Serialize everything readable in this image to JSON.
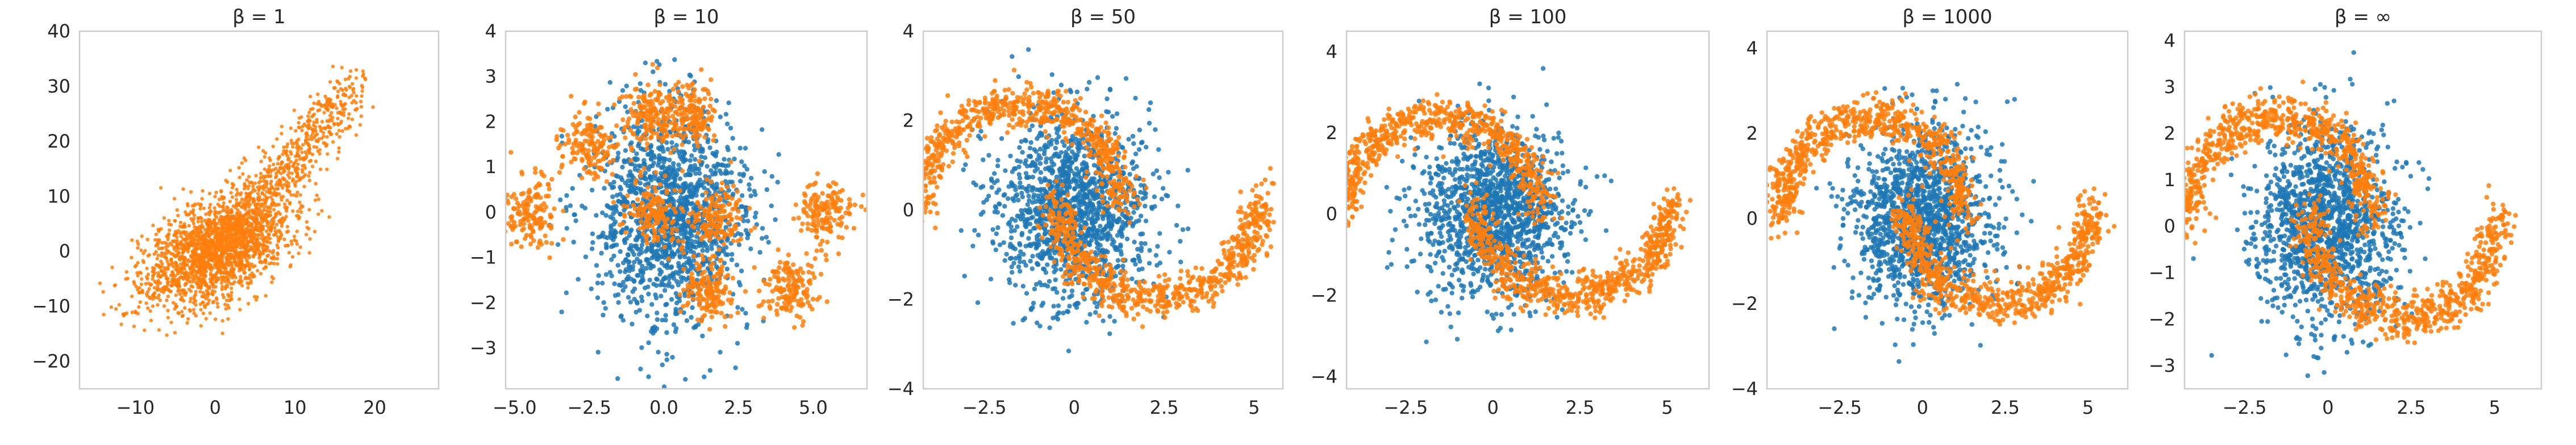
{
  "figure": {
    "colors": {
      "blue": "#1f77b4",
      "orange": "#ff7f0e",
      "spine": "#cccccc",
      "text": "#262626"
    }
  },
  "chart_data": [
    {
      "type": "scatter",
      "title": "β = 1",
      "xlim": [
        -17,
        28
      ],
      "ylim": [
        -25,
        40
      ],
      "xticks": [
        -10,
        0,
        10,
        20
      ],
      "yticks": [
        -20,
        -10,
        0,
        10,
        20,
        30,
        40
      ],
      "grid": false,
      "series": [
        {
          "color": "#ff7f0e",
          "kind": "linear_blob",
          "description_points": [
            [
              -14,
              -15
            ],
            [
              -10,
              -8
            ],
            [
              -5,
              -4
            ],
            [
              0,
              0
            ],
            [
              5,
              4
            ],
            [
              10,
              13
            ],
            [
              15,
              28
            ],
            [
              18,
              36
            ],
            [
              22,
              35
            ],
            [
              26,
              25
            ]
          ]
        }
      ]
    },
    {
      "type": "scatter",
      "title": "β = 10",
      "xlim": [
        -5.3,
        6.8
      ],
      "ylim": [
        -3.9,
        4.0
      ],
      "xticks": [
        -5.0,
        -2.5,
        0.0,
        2.5,
        5.0
      ],
      "yticks": [
        -3,
        -2,
        -1,
        0,
        1,
        2,
        3,
        4
      ],
      "xtick_labels": [
        "−5.0",
        "−2.5",
        "0.0",
        "2.5",
        "5.0"
      ],
      "grid": false,
      "series": [
        {
          "color": "#1f77b4",
          "kind": "gaussian",
          "center": [
            0.2,
            0.0
          ],
          "spread": [
            1.3,
            1.2
          ]
        },
        {
          "color": "#ff7f0e",
          "kind": "fragmented",
          "clusters": [
            [
              -4.5,
              0.0
            ],
            [
              -2.5,
              1.5
            ],
            [
              -0.5,
              2.2
            ],
            [
              1.0,
              2.2
            ],
            [
              1.5,
              -1.7
            ],
            [
              4.2,
              -1.7
            ],
            [
              5.5,
              0.0
            ],
            [
              -0.3,
              0.0
            ],
            [
              1.8,
              -0.1
            ]
          ]
        }
      ]
    },
    {
      "type": "scatter",
      "title": "β = 50",
      "xlim": [
        -4.2,
        5.8
      ],
      "ylim": [
        -4.0,
        4.0
      ],
      "xticks": [
        -2.5,
        0.0,
        2.5,
        5.0
      ],
      "yticks": [
        -4,
        -2,
        0,
        2,
        4
      ],
      "grid": false,
      "series": [
        {
          "color": "#1f77b4",
          "kind": "gaussian",
          "center": [
            0.0,
            0.0
          ],
          "spread": [
            1.05,
            1.05
          ]
        },
        {
          "color": "#ff7f0e",
          "kind": "two_moons"
        }
      ]
    },
    {
      "type": "scatter",
      "title": "β = 100",
      "xlim": [
        -4.2,
        6.2
      ],
      "ylim": [
        -4.3,
        4.5
      ],
      "xticks": [
        -2.5,
        0.0,
        2.5,
        5.0
      ],
      "yticks": [
        -4,
        -2,
        0,
        2,
        4
      ],
      "grid": false,
      "series": [
        {
          "color": "#1f77b4",
          "kind": "gaussian",
          "center": [
            0.0,
            0.0
          ],
          "spread": [
            1.05,
            1.05
          ]
        },
        {
          "color": "#ff7f0e",
          "kind": "two_moons"
        }
      ]
    },
    {
      "type": "scatter",
      "title": "β = 1000",
      "xlim": [
        -4.7,
        6.2
      ],
      "ylim": [
        -4.0,
        4.4
      ],
      "xticks": [
        -2.5,
        0.0,
        2.5,
        5.0
      ],
      "yticks": [
        -4,
        -2,
        0,
        2,
        4
      ],
      "grid": false,
      "series": [
        {
          "color": "#1f77b4",
          "kind": "gaussian",
          "center": [
            0.0,
            0.0
          ],
          "spread": [
            1.05,
            1.05
          ]
        },
        {
          "color": "#ff7f0e",
          "kind": "two_moons"
        }
      ]
    },
    {
      "type": "scatter",
      "title": "β = ∞",
      "xlim": [
        -4.3,
        6.4
      ],
      "ylim": [
        -3.5,
        4.2
      ],
      "xticks": [
        -2.5,
        0.0,
        2.5,
        5.0
      ],
      "yticks": [
        -3,
        -2,
        -1,
        0,
        1,
        2,
        3,
        4
      ],
      "grid": false,
      "series": [
        {
          "color": "#1f77b4",
          "kind": "gaussian",
          "center": [
            0.0,
            0.0
          ],
          "spread": [
            1.05,
            1.05
          ]
        },
        {
          "color": "#ff7f0e",
          "kind": "two_moons"
        }
      ]
    }
  ]
}
